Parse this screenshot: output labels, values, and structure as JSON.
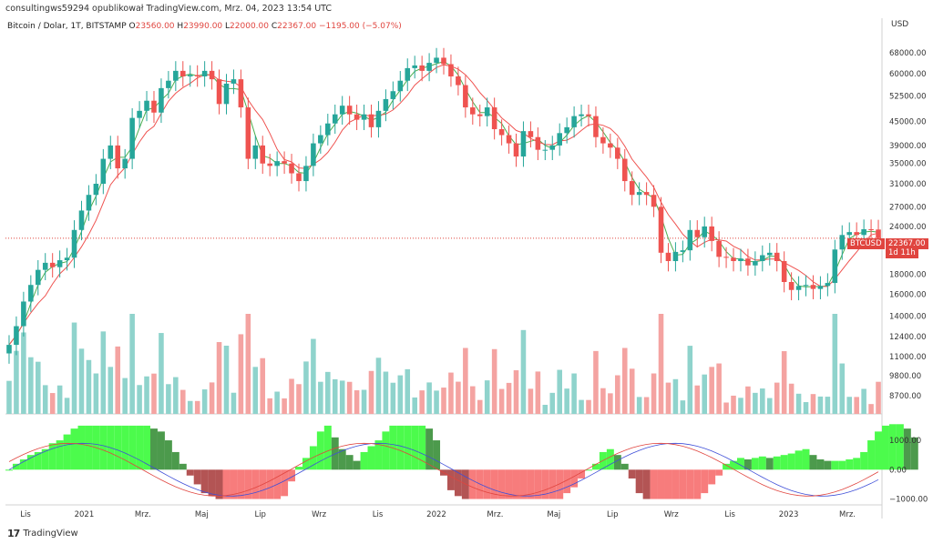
{
  "caption": "consultingws59294 opublikował TradingView.com, Mrz. 04, 2023 13:54 UTC",
  "legend": {
    "symbol": "Bitcoin / Dolar, 1T, BITSTAMP",
    "o_label": "O",
    "o_value": "23560.00",
    "h_label": "H",
    "h_value": "23990.00",
    "l_label": "L",
    "l_value": "22000.00",
    "c_label": "C",
    "c_value": "22367.00",
    "change": "−1195.00 (−5.07%)"
  },
  "price_axis": {
    "unit": "USD",
    "ticks": [
      "68000.00",
      "60000.00",
      "52500.00",
      "45000.00",
      "39000.00",
      "35000.00",
      "31000.00",
      "27000.00",
      "24000.00",
      "18000.00",
      "16000.00",
      "14000.00",
      "12400.00",
      "11000.00",
      "9800.00",
      "8700.00"
    ]
  },
  "osc_axis": {
    "ticks": [
      "1000.00",
      "0.00",
      "−1000.00"
    ]
  },
  "last_price": {
    "symbol": "BTCUSD",
    "value": "22367.00",
    "countdown": "1d 11h"
  },
  "time_axis": [
    "Lis",
    "2021",
    "Mrz.",
    "Maj",
    "Lip",
    "Wrz",
    "Lis",
    "2022",
    "Mrz.",
    "Maj",
    "Lip",
    "Wrz",
    "Lis",
    "2023",
    "Mrz."
  ],
  "branding": {
    "name": "TradingView",
    "logo": "tradingview-logo"
  },
  "colors": {
    "up": "#26a69a",
    "down": "#ef5350",
    "ma_fast": "#4caf50",
    "ma_slow": "#ef5350",
    "vol_up": "#8fd3cc",
    "vol_down": "#f4a3a1",
    "osc_bright_up": "#4cfb4c",
    "osc_dark_up": "#4c9a4c",
    "osc_bright_down": "#f77c7c",
    "osc_dark_down": "#b35454",
    "wave_blue": "#3f4fd8",
    "wave_red": "#e0453f"
  },
  "chart_data": {
    "type": "candlestick",
    "ohlc_close_approx": [
      11800,
      13200,
      15300,
      16900,
      18500,
      19300,
      18800,
      19600,
      19900,
      23500,
      26400,
      29000,
      31000,
      36000,
      39000,
      34000,
      36000,
      46000,
      48000,
      51000,
      47500,
      55000,
      57500,
      61000,
      59000,
      59500,
      59000,
      61000,
      58000,
      50000,
      56500,
      58000,
      49000,
      36000,
      39000,
      35000,
      34500,
      35500,
      35000,
      33000,
      31500,
      34500,
      39500,
      41500,
      44500,
      47000,
      49500,
      47000,
      45500,
      47000,
      43500,
      48000,
      51500,
      54000,
      57500,
      62000,
      63000,
      61000,
      64000,
      66000,
      63500,
      59000,
      56000,
      49000,
      47000,
      46500,
      49000,
      43000,
      41500,
      39500,
      36500,
      42500,
      41000,
      38000,
      38000,
      39000,
      42000,
      43500,
      46500,
      47000,
      46500,
      41000,
      39500,
      38500,
      36000,
      31500,
      29000,
      29500,
      29000,
      27000,
      20500,
      19500,
      20600,
      20800,
      23500,
      22500,
      24000,
      22000,
      20000,
      19900,
      19500,
      19800,
      19000,
      19500,
      20200,
      20500,
      19500,
      17200,
      16400,
      16800,
      16900,
      16500,
      16800,
      17100,
      20900,
      22800,
      23200,
      22800,
      23600,
      23560,
      22367
    ],
    "series": [
      {
        "name": "",
        "type": "ma_fast"
      },
      {
        "name": "",
        "type": "ma_slow"
      },
      {
        "name": "",
        "type": "volume"
      },
      {
        "name": "",
        "type": "oscillator",
        "values_approx": [
          0,
          200,
          350,
          500,
          600,
          700,
          900,
          1000,
          1200,
          1400,
          1500,
          1500,
          1500,
          1500,
          1500,
          1500,
          1500,
          1500,
          1500,
          1500,
          1400,
          1300,
          1000,
          600,
          200,
          -200,
          -500,
          -800,
          -900,
          -1000,
          -1000,
          -1000,
          -1000,
          -1000,
          -1000,
          -1000,
          -1000,
          -1000,
          -900,
          -400,
          100,
          400,
          800,
          1300,
          1500,
          1100,
          700,
          500,
          300,
          600,
          800,
          1000,
          1300,
          1500,
          1500,
          1500,
          1500,
          1500,
          1400,
          1000,
          -200,
          -700,
          -900,
          -1000,
          -1000,
          -1000,
          -1000,
          -1000,
          -1000,
          -1000,
          -1000,
          -1000,
          -1000,
          -1000,
          -1000,
          -1000,
          -1000,
          -800,
          -600,
          -300,
          0,
          200,
          600,
          700,
          500,
          200,
          -300,
          -800,
          -1000,
          -1000,
          -1000,
          -1000,
          -1000,
          -1000,
          -1000,
          -1000,
          -800,
          -500,
          -200,
          200,
          300,
          400,
          350,
          400,
          450,
          400,
          450,
          500,
          550,
          650,
          700,
          500,
          350,
          300,
          300,
          300,
          350,
          400,
          600,
          1000,
          1300,
          1500,
          1550,
          1550,
          1400,
          1100
        ]
      }
    ],
    "xlabel": "",
    "ylabel": "USD",
    "scale": "log",
    "ylim": [
      7800,
      75000
    ],
    "osc_ylim": [
      -1200,
      1900
    ],
    "grid": true
  }
}
